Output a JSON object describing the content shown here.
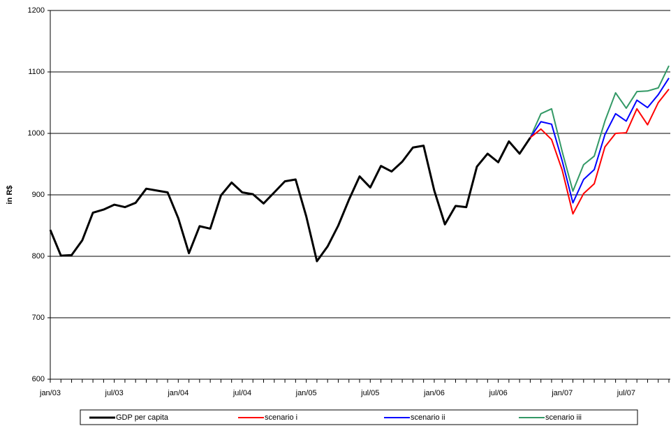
{
  "chart_data": {
    "type": "line",
    "y_label": "in R$",
    "categories": [
      "jan/03",
      null,
      null,
      null,
      null,
      null,
      "jul/03",
      null,
      null,
      null,
      null,
      null,
      "jan/04",
      null,
      null,
      null,
      null,
      null,
      "jul/04",
      null,
      null,
      null,
      null,
      null,
      "jan/05",
      null,
      null,
      null,
      null,
      null,
      "jul/05",
      null,
      null,
      null,
      null,
      null,
      "jan/06",
      null,
      null,
      null,
      null,
      null,
      "jul/06",
      null,
      null,
      null,
      null,
      null,
      "jan/07",
      null,
      null,
      null,
      null,
      null,
      "jul/07",
      null,
      null,
      null,
      null
    ],
    "series": [
      {
        "name": "GDP per capita",
        "color": "#000000",
        "values": [
          843,
          801,
          802,
          826,
          871,
          876,
          884,
          880,
          887,
          910,
          907,
          904,
          862,
          805,
          849,
          845,
          899,
          920,
          904,
          901,
          886,
          904,
          922,
          925,
          865,
          792,
          816,
          850,
          892,
          930,
          912,
          947,
          938,
          954,
          977,
          980,
          907,
          852,
          882,
          880,
          946,
          967,
          953,
          987,
          967,
          993,
          null,
          null,
          null,
          null,
          null,
          null,
          null,
          null,
          null,
          null,
          null,
          null,
          null
        ]
      },
      {
        "name": "scenario i",
        "color": "#ff0000",
        "values": [
          null,
          null,
          null,
          null,
          null,
          null,
          null,
          null,
          null,
          null,
          null,
          null,
          null,
          null,
          null,
          null,
          null,
          null,
          null,
          null,
          null,
          null,
          null,
          null,
          null,
          null,
          null,
          null,
          null,
          null,
          null,
          null,
          null,
          null,
          null,
          null,
          null,
          null,
          null,
          null,
          null,
          null,
          null,
          null,
          null,
          993,
          1007,
          990,
          940,
          869,
          902,
          918,
          978,
          1000,
          1001,
          1040,
          1014,
          1050,
          1072
        ]
      },
      {
        "name": "scenario ii",
        "color": "#0000ff",
        "values": [
          null,
          null,
          null,
          null,
          null,
          null,
          null,
          null,
          null,
          null,
          null,
          null,
          null,
          null,
          null,
          null,
          null,
          null,
          null,
          null,
          null,
          null,
          null,
          null,
          null,
          null,
          null,
          null,
          null,
          null,
          null,
          null,
          null,
          null,
          null,
          null,
          null,
          null,
          null,
          null,
          null,
          null,
          null,
          null,
          null,
          993,
          1019,
          1015,
          955,
          887,
          925,
          941,
          998,
          1032,
          1020,
          1054,
          1042,
          1063,
          1090
        ]
      },
      {
        "name": "scenario iii",
        "color": "#339966",
        "values": [
          null,
          null,
          null,
          null,
          null,
          null,
          null,
          null,
          null,
          null,
          null,
          null,
          null,
          null,
          null,
          null,
          null,
          null,
          null,
          null,
          null,
          null,
          null,
          null,
          null,
          null,
          null,
          null,
          null,
          null,
          null,
          null,
          null,
          null,
          null,
          null,
          null,
          null,
          null,
          null,
          null,
          null,
          null,
          null,
          null,
          993,
          1032,
          1040,
          970,
          906,
          949,
          963,
          1020,
          1066,
          1041,
          1068,
          1069,
          1074,
          1110
        ]
      }
    ],
    "ylim": [
      600,
      1200
    ],
    "yticks": [
      600,
      700,
      800,
      900,
      1000,
      1100,
      1200
    ],
    "grid": true,
    "legend": "bottom"
  }
}
